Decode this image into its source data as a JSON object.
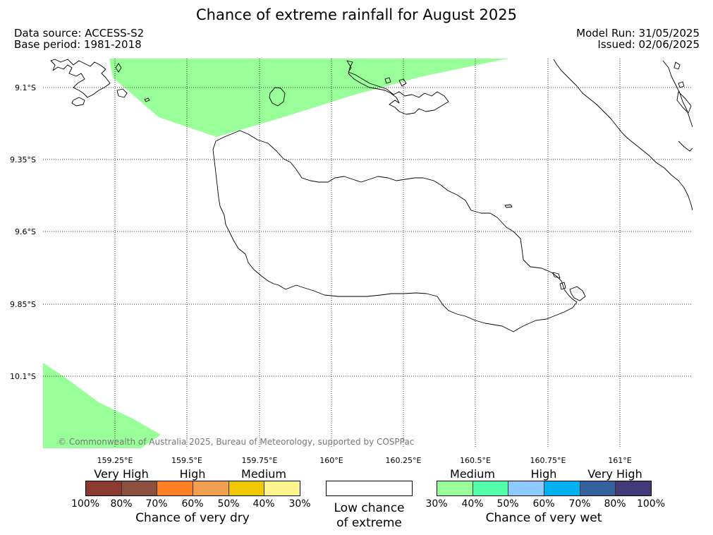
{
  "header": {
    "title": "Chance of extreme rainfall for August 2025",
    "data_source": "Data source: ACCESS-S2",
    "base_period": "Base period: 1981-2018",
    "model_run": "Model Run: 31/05/2025",
    "issued": "Issued: 02/06/2025"
  },
  "map": {
    "lat_labels": [
      "9.1°S",
      "9.35°S",
      "9.6°S",
      "9.85°S",
      "10.1°S"
    ],
    "lon_labels": [
      "159.25°E",
      "159.5°E",
      "159.75°E",
      "160°E",
      "160.25°E",
      "160.5°E",
      "160.75°E",
      "161°E"
    ],
    "wet_area_color": "#99ff99",
    "wet_area_category": "Medium (30%-40%) chance of very wet",
    "copyright": "© Commonwealth of Australia 2025, Bureau of Meteorology, supported by COSPPac"
  },
  "legend": {
    "dry": {
      "bands": [
        "Very High",
        "High",
        "Medium"
      ],
      "colors": [
        "#8b3a32",
        "#8b5040",
        "#ff7f27",
        "#f0a050",
        "#f0c800",
        "#fff58c"
      ],
      "ticks": [
        "100%",
        "80%",
        "70%",
        "60%",
        "50%",
        "40%",
        "30%"
      ],
      "caption": "Chance of very dry"
    },
    "low": {
      "line1": "Low chance",
      "line2": "of extreme"
    },
    "wet": {
      "bands": [
        "Medium",
        "High",
        "Very High"
      ],
      "colors": [
        "#99ff99",
        "#55ffa8",
        "#8ccaff",
        "#00b0ef",
        "#34609e",
        "#433a7a"
      ],
      "ticks": [
        "30%",
        "40%",
        "50%",
        "60%",
        "70%",
        "80%",
        "100%"
      ],
      "caption": "Chance of very wet"
    }
  }
}
